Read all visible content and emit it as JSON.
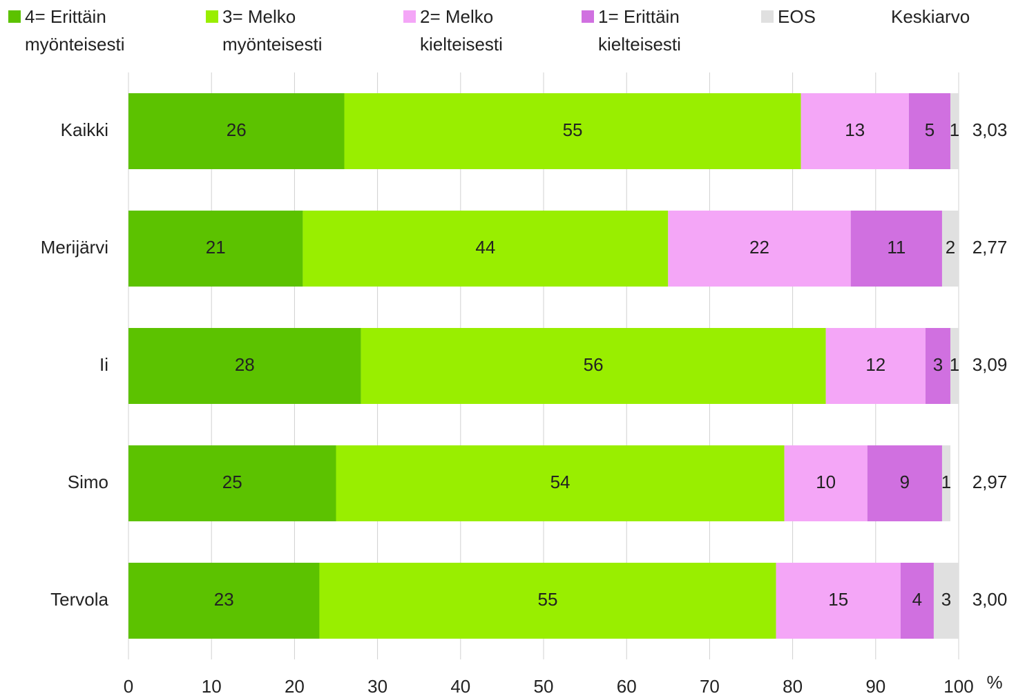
{
  "chart_data": {
    "type": "stacked-bar-horizontal",
    "categories": [
      "Kaikki",
      "Merijärvi",
      "Ii",
      "Simo",
      "Tervola"
    ],
    "series": [
      {
        "name": "4= Erittäin myönteisesti",
        "color": "#5cc200",
        "values": [
          26,
          21,
          28,
          25,
          23
        ]
      },
      {
        "name": "3= Melko myönteisesti",
        "color": "#99ee00",
        "values": [
          55,
          44,
          56,
          54,
          55
        ]
      },
      {
        "name": "2= Melko kielteisesti",
        "color": "#f4a6f7",
        "values": [
          13,
          22,
          12,
          10,
          15
        ]
      },
      {
        "name": "1= Erittäin kielteisesti",
        "color": "#d070e0",
        "values": [
          5,
          11,
          3,
          9,
          4
        ]
      },
      {
        "name": "EOS",
        "color": "#e0e0e0",
        "values": [
          1,
          2,
          1,
          1,
          3
        ]
      }
    ],
    "keskiarvo": {
      "name": "Keskiarvo",
      "values": [
        3.03,
        2.77,
        3.09,
        2.97,
        3.0
      ],
      "value_labels": [
        "3,03",
        "2,77",
        "3,09",
        "2,97",
        "3,00"
      ]
    },
    "xlabel": "%",
    "xlim": [
      0,
      100
    ],
    "xticks": [
      0,
      10,
      20,
      30,
      40,
      50,
      60,
      70,
      80,
      90,
      100
    ],
    "grid": true
  }
}
